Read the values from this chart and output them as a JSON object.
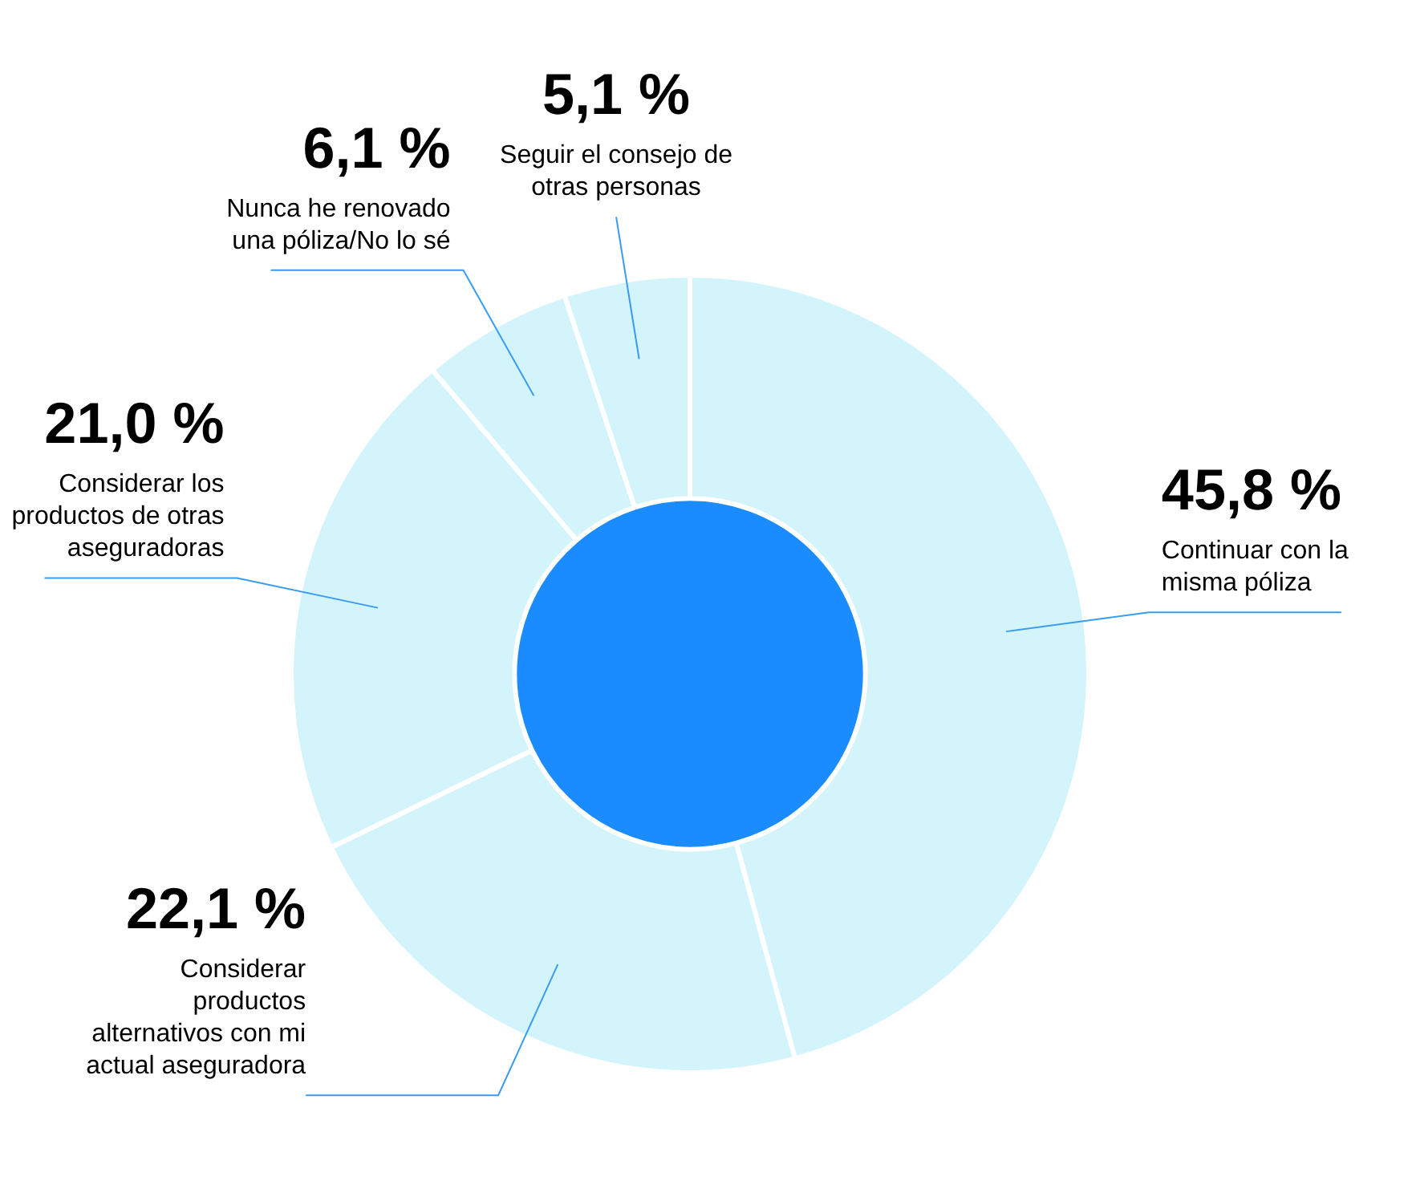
{
  "chart_data": {
    "type": "donut",
    "categories": [
      "Continuar con la misma póliza",
      "Considerar productos alternativos con mi actual aseguradora",
      "Considerar los productos de otras aseguradoras",
      "Nunca he renovado una póliza/No lo sé",
      "Seguir el consejo de otras personas"
    ],
    "values": [
      45.8,
      22.1,
      21.0,
      6.1,
      5.1
    ],
    "value_labels": [
      "45,8 %",
      "22,1 %",
      "21,0 %",
      "6,1 %",
      "5,1 %"
    ],
    "colors": [
      "#d4f4fb",
      "#d4f4fb",
      "#d4f4fb",
      "#d4f4fb",
      "#d4f4fb"
    ],
    "legend": false
  }
}
